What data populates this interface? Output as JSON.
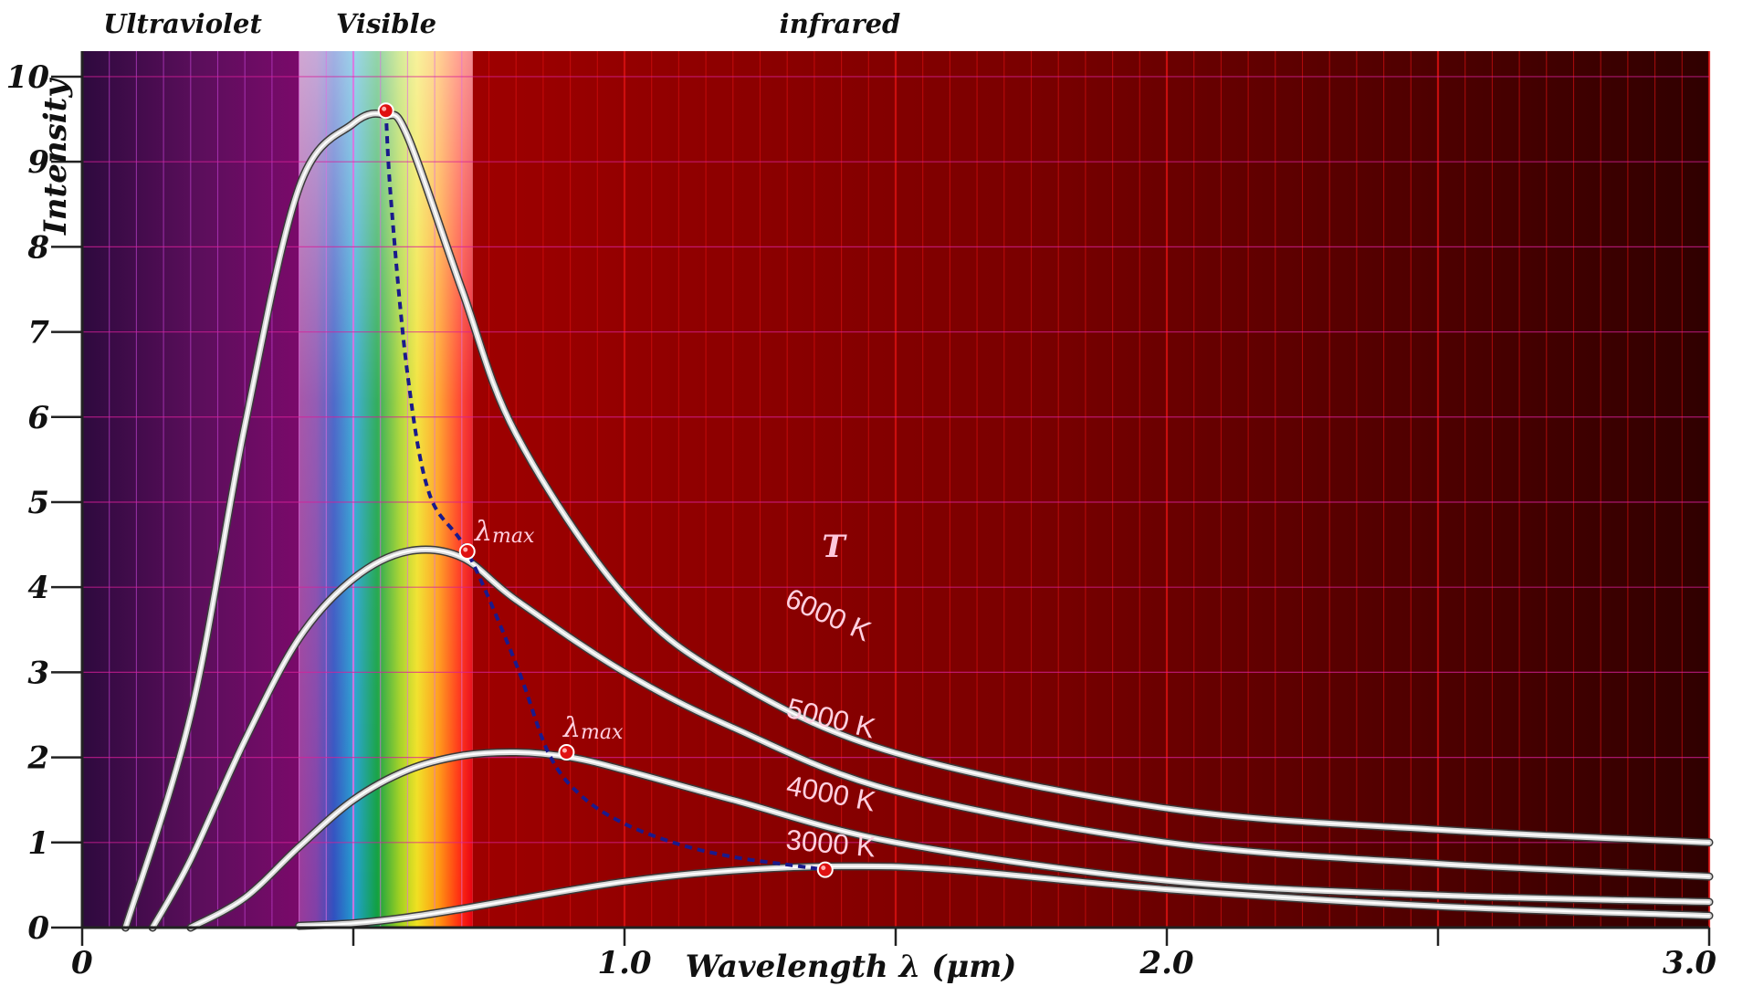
{
  "chart_data": {
    "type": "line",
    "bands": [
      {
        "name": "Ultraviolet",
        "range": [
          0,
          0.4
        ]
      },
      {
        "name": "Visible",
        "range": [
          0.4,
          0.72
        ]
      },
      {
        "name": "infrared",
        "range": [
          0.72,
          3.0
        ]
      }
    ],
    "xlabel": "Wavelength λ (μm)",
    "ylabel": "Intensity",
    "xlim": [
      0,
      3.0
    ],
    "ylim": [
      0,
      10.3
    ],
    "x_tick_labels": [
      {
        "value": 0,
        "label": "0"
      },
      {
        "value": 1.0,
        "label": "1.0"
      },
      {
        "value": 2.0,
        "label": "2.0"
      },
      {
        "value": 3.0,
        "label": "3.0"
      }
    ],
    "x_minor_ticks": [
      0.5,
      1.5,
      2.5
    ],
    "y_tick_labels": [
      "0",
      "1",
      "2",
      "3",
      "4",
      "5",
      "6",
      "7",
      "8",
      "9",
      "10"
    ],
    "grid": true,
    "series_title": "T",
    "series": [
      {
        "name": "6000 K",
        "x": [
          0.08,
          0.2,
          0.3,
          0.4,
          0.5,
          0.56,
          0.6,
          0.7,
          0.8,
          1.0,
          1.2,
          1.5,
          2.0,
          2.5,
          3.0
        ],
        "y": [
          0.0,
          2.5,
          5.9,
          8.7,
          9.45,
          9.55,
          9.3,
          7.5,
          5.8,
          3.9,
          2.9,
          2.05,
          1.4,
          1.15,
          1.0
        ]
      },
      {
        "name": "5000 K",
        "x": [
          0.13,
          0.2,
          0.3,
          0.4,
          0.5,
          0.6,
          0.7,
          0.8,
          1.0,
          1.2,
          1.5,
          2.0,
          2.5,
          3.0
        ],
        "y": [
          0.0,
          0.8,
          2.2,
          3.4,
          4.1,
          4.42,
          4.35,
          3.85,
          3.0,
          2.35,
          1.6,
          1.0,
          0.75,
          0.6
        ]
      },
      {
        "name": "4000 K",
        "x": [
          0.2,
          0.3,
          0.4,
          0.5,
          0.6,
          0.7,
          0.8,
          0.9,
          1.0,
          1.2,
          1.5,
          2.0,
          2.5,
          3.0
        ],
        "y": [
          0.0,
          0.35,
          0.95,
          1.5,
          1.85,
          2.02,
          2.06,
          2.0,
          1.85,
          1.5,
          1.0,
          0.55,
          0.38,
          0.3
        ]
      },
      {
        "name": "3000 K",
        "x": [
          0.4,
          0.5,
          0.6,
          0.7,
          0.8,
          1.0,
          1.2,
          1.4,
          1.6,
          2.0,
          2.5,
          3.0
        ],
        "y": [
          0.02,
          0.05,
          0.12,
          0.22,
          0.33,
          0.54,
          0.67,
          0.72,
          0.68,
          0.45,
          0.25,
          0.14
        ]
      }
    ],
    "peak_locus": {
      "x": [
        0.56,
        0.57,
        0.6,
        0.64,
        0.71,
        0.8,
        0.86,
        0.92,
        1.0,
        1.1,
        1.2,
        1.3,
        1.37
      ],
      "y": [
        9.6,
        8.5,
        6.5,
        5.1,
        4.42,
        3.1,
        2.05,
        1.55,
        1.22,
        0.98,
        0.83,
        0.74,
        0.68
      ]
    },
    "peak_markers": [
      {
        "x": 0.56,
        "y": 9.6
      },
      {
        "x": 0.71,
        "y": 4.42
      },
      {
        "x": 0.893,
        "y": 2.06
      },
      {
        "x": 1.37,
        "y": 0.68
      }
    ],
    "annotations": {
      "lambda_symbol": "λ",
      "lambda_subscript": "max",
      "temperature_symbol": "T"
    },
    "colors": {
      "locus": "#1a1a8c",
      "marker": "#e01010",
      "curve": "#d8d8d8",
      "ultraviolet": "#6a0a5a",
      "infrared": "#9a0000"
    }
  }
}
